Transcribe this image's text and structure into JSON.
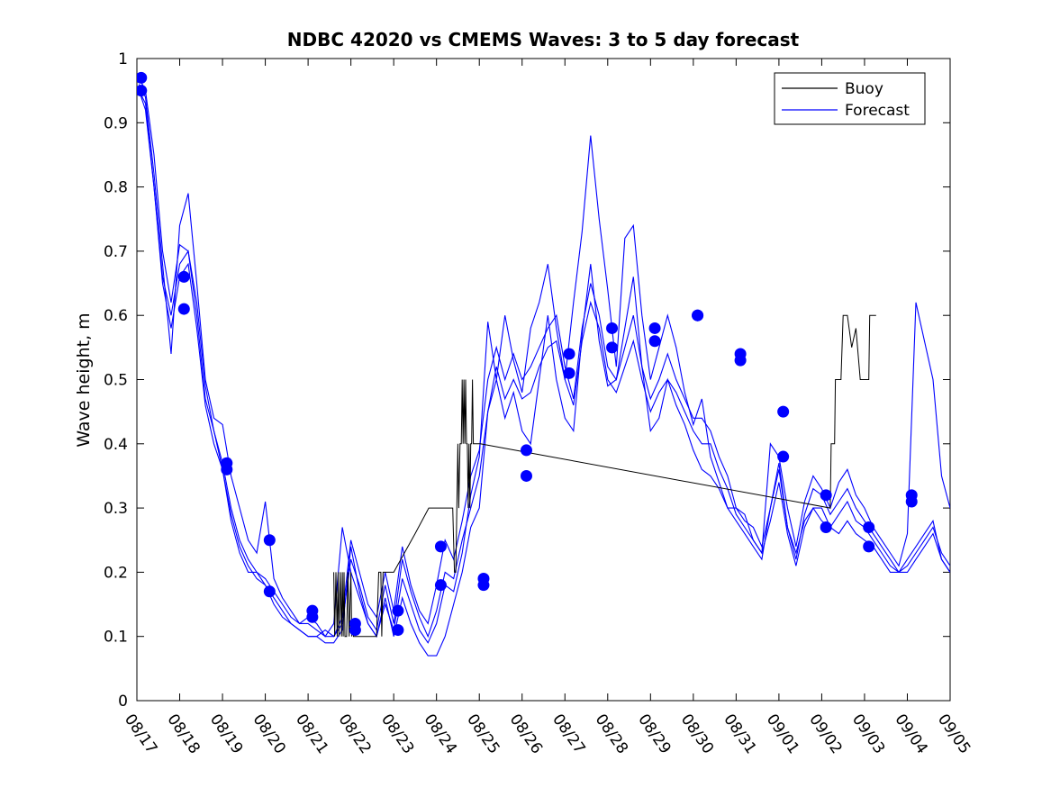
{
  "chart_data": {
    "type": "line",
    "title": "NDBC 42020 vs CMEMS Waves: 3 to 5 day forecast",
    "xlabel": "",
    "ylabel": "Wave height, m",
    "xlim": [
      0,
      19
    ],
    "ylim": [
      0,
      1
    ],
    "grid": false,
    "legend_position": "top-right",
    "x_tick_labels": [
      "08/17",
      "08/18",
      "08/19",
      "08/20",
      "08/21",
      "08/22",
      "08/23",
      "08/24",
      "08/25",
      "08/26",
      "08/27",
      "08/28",
      "08/29",
      "08/30",
      "08/31",
      "09/01",
      "09/02",
      "09/03",
      "09/04",
      "09/05"
    ],
    "y_ticks": [
      0,
      0.1,
      0.2,
      0.3,
      0.4,
      0.5,
      0.6,
      0.7,
      0.8,
      0.9,
      1
    ],
    "y_tick_labels": [
      "0",
      "0.1",
      "0.2",
      "0.3",
      "0.4",
      "0.5",
      "0.6",
      "0.7",
      "0.8",
      "0.9",
      "1"
    ],
    "legend": [
      "Buoy",
      "Forecast"
    ],
    "colors": {
      "buoy": "#000000",
      "forecast": "#0000ff"
    },
    "buoy": {
      "name": "Buoy",
      "x": [
        4.6,
        4.62,
        4.65,
        4.68,
        4.7,
        4.72,
        4.75,
        4.78,
        4.8,
        4.82,
        4.84,
        4.86,
        4.9,
        4.93,
        4.96,
        5.0,
        5.02,
        5.04,
        5.06,
        5.08,
        5.1,
        5.4,
        5.6,
        5.65,
        5.7,
        5.72,
        5.75,
        6.0,
        6.5,
        6.82,
        6.85,
        6.9,
        7.38,
        7.42,
        7.45,
        7.5,
        7.52,
        7.55,
        7.58,
        7.6,
        7.62,
        7.64,
        7.66,
        7.68,
        7.7,
        7.72,
        7.74,
        7.76,
        7.78,
        7.8,
        7.82,
        7.84,
        7.86,
        7.88,
        7.9,
        7.92,
        7.94,
        7.96,
        8.0,
        8.02,
        16.2,
        16.22,
        16.3,
        16.32,
        16.45,
        16.5,
        16.6,
        16.7,
        16.8,
        16.9,
        17.0,
        17.05,
        17.1,
        17.12,
        17.25,
        17.27
      ],
      "y": [
        0.2,
        0.1,
        0.2,
        0.1,
        0.2,
        0.1,
        0.2,
        0.1,
        0.2,
        0.1,
        0.2,
        0.1,
        0.1,
        0.2,
        0.1,
        0.2,
        0.1,
        0.12,
        0.1,
        0.1,
        0.1,
        0.1,
        0.1,
        0.2,
        0.2,
        0.1,
        0.2,
        0.2,
        0.26,
        0.3,
        0.3,
        0.3,
        0.3,
        0.2,
        0.2,
        0.4,
        0.3,
        0.4,
        0.4,
        0.5,
        0.4,
        0.5,
        0.4,
        0.5,
        0.4,
        0.4,
        0.3,
        0.4,
        0.3,
        0.4,
        0.4,
        0.5,
        0.4,
        0.4,
        0.4,
        0.4,
        0.4,
        0.4,
        0.4,
        0.4,
        0.3,
        0.4,
        0.4,
        0.5,
        0.5,
        0.6,
        0.6,
        0.55,
        0.58,
        0.5,
        0.5,
        0.5,
        0.5,
        0.6,
        0.6,
        0.6
      ]
    },
    "forecast_series": [
      {
        "name": "Forecast",
        "x": [
          0.05,
          0.2,
          0.4,
          0.6,
          0.8,
          1.0,
          1.2,
          1.4,
          1.6,
          1.8,
          2.0,
          2.2,
          2.4,
          2.6,
          2.8,
          3.0,
          3.2,
          3.4,
          3.6,
          3.8,
          4.0,
          4.2,
          4.4,
          4.6,
          4.8,
          5.0,
          5.2,
          5.4,
          5.6,
          5.8,
          6.0,
          6.2,
          6.4,
          6.6,
          6.8,
          7.0,
          7.2,
          7.4,
          7.6,
          7.8,
          8.0,
          8.2,
          8.4,
          8.6,
          8.8,
          9.0,
          9.2,
          9.4,
          9.6,
          9.8,
          10.0,
          10.2,
          10.4,
          10.6,
          10.8,
          11.0,
          11.2,
          11.4,
          11.6,
          11.8,
          12.0,
          12.2,
          12.4,
          12.6,
          12.8,
          13.0,
          13.2,
          13.4,
          13.6,
          13.8,
          14.0,
          14.2,
          14.4,
          14.6,
          14.8,
          15.0,
          15.2,
          15.4,
          15.6,
          15.8,
          16.0,
          16.2,
          16.4,
          16.6,
          16.8,
          17.0,
          17.2,
          17.4,
          17.6,
          17.8,
          18.0,
          18.2,
          18.4,
          18.6,
          18.8,
          19.0
        ],
        "y": [
          0.95,
          0.93,
          0.8,
          0.66,
          0.6,
          0.68,
          0.7,
          0.6,
          0.47,
          0.42,
          0.37,
          0.3,
          0.25,
          0.22,
          0.2,
          0.19,
          0.17,
          0.15,
          0.13,
          0.12,
          0.12,
          0.11,
          0.1,
          0.1,
          0.13,
          0.25,
          0.2,
          0.15,
          0.13,
          0.2,
          0.14,
          0.24,
          0.18,
          0.14,
          0.12,
          0.18,
          0.25,
          0.22,
          0.28,
          0.35,
          0.39,
          0.5,
          0.55,
          0.5,
          0.54,
          0.5,
          0.52,
          0.55,
          0.58,
          0.6,
          0.52,
          0.47,
          0.58,
          0.65,
          0.6,
          0.52,
          0.5,
          0.55,
          0.6,
          0.52,
          0.47,
          0.5,
          0.54,
          0.5,
          0.47,
          0.44,
          0.44,
          0.42,
          0.38,
          0.35,
          0.3,
          0.28,
          0.27,
          0.24,
          0.3,
          0.37,
          0.27,
          0.22,
          0.29,
          0.33,
          0.32,
          0.29,
          0.31,
          0.33,
          0.3,
          0.28,
          0.26,
          0.24,
          0.22,
          0.2,
          0.2,
          0.22,
          0.24,
          0.26,
          0.22,
          0.2
        ]
      },
      {
        "name": "Forecast",
        "x": [
          0.05,
          0.2,
          0.4,
          0.6,
          0.8,
          1.0,
          1.2,
          1.4,
          1.6,
          1.8,
          2.0,
          2.2,
          2.4,
          2.6,
          2.8,
          3.0,
          3.2,
          3.4,
          3.6,
          3.8,
          4.0,
          4.2,
          4.4,
          4.6,
          4.8,
          5.0,
          5.2,
          5.4,
          5.6,
          5.8,
          6.0,
          6.2,
          6.4,
          6.6,
          6.8,
          7.0,
          7.2,
          7.4,
          7.6,
          7.8,
          8.0,
          8.2,
          8.4,
          8.6,
          8.8,
          9.0,
          9.2,
          9.4,
          9.6,
          9.8,
          10.0,
          10.2,
          10.4,
          10.6,
          10.8,
          11.0,
          11.2,
          11.4,
          11.6,
          11.8,
          12.0,
          12.2,
          12.4,
          12.6,
          12.8,
          13.0,
          13.2,
          13.4,
          13.6,
          13.8,
          14.0,
          14.2,
          14.4,
          14.6,
          14.8,
          15.0,
          15.2,
          15.4,
          15.6,
          15.8,
          16.0,
          16.2,
          16.4,
          16.6,
          16.8,
          17.0,
          17.2,
          17.4,
          17.6,
          17.8,
          18.0,
          18.2,
          18.4,
          18.6,
          18.8,
          19.0
        ],
        "y": [
          0.97,
          0.95,
          0.85,
          0.7,
          0.62,
          0.71,
          0.7,
          0.62,
          0.49,
          0.42,
          0.36,
          0.29,
          0.24,
          0.21,
          0.19,
          0.18,
          0.16,
          0.14,
          0.12,
          0.11,
          0.1,
          0.1,
          0.11,
          0.1,
          0.12,
          0.22,
          0.18,
          0.13,
          0.11,
          0.18,
          0.12,
          0.22,
          0.17,
          0.13,
          0.1,
          0.14,
          0.2,
          0.19,
          0.25,
          0.3,
          0.35,
          0.45,
          0.52,
          0.47,
          0.5,
          0.47,
          0.48,
          0.52,
          0.55,
          0.56,
          0.5,
          0.46,
          0.56,
          0.62,
          0.58,
          0.5,
          0.48,
          0.52,
          0.56,
          0.5,
          0.45,
          0.48,
          0.5,
          0.48,
          0.45,
          0.42,
          0.4,
          0.4,
          0.36,
          0.33,
          0.29,
          0.27,
          0.25,
          0.23,
          0.28,
          0.34,
          0.26,
          0.21,
          0.27,
          0.3,
          0.3,
          0.27,
          0.29,
          0.31,
          0.28,
          0.27,
          0.25,
          0.23,
          0.21,
          0.2,
          0.21,
          0.23,
          0.25,
          0.27,
          0.23,
          0.21
        ]
      },
      {
        "name": "Forecast",
        "x": [
          0.05,
          0.2,
          0.4,
          0.6,
          0.8,
          1.0,
          1.2,
          1.4,
          1.6,
          1.8,
          2.0,
          2.2,
          2.4,
          2.6,
          2.8,
          3.0,
          3.2,
          3.4,
          3.6,
          3.8,
          4.0,
          4.2,
          4.4,
          4.6,
          4.8,
          5.0,
          5.2,
          5.4,
          5.6,
          5.8,
          6.0,
          6.2,
          6.4,
          6.6,
          6.8,
          7.0,
          7.2,
          7.4,
          7.6,
          7.8,
          8.0,
          8.2,
          8.4,
          8.6,
          8.8,
          9.0,
          9.2,
          9.4,
          9.6,
          9.8,
          10.0,
          10.2,
          10.4,
          10.6,
          10.8,
          11.0,
          11.2,
          11.4,
          11.6,
          11.8,
          12.0,
          12.2,
          12.4,
          12.6,
          12.8,
          13.0,
          13.2,
          13.4,
          13.6,
          13.8,
          14.0,
          14.2,
          14.4,
          14.6,
          14.8,
          15.0,
          15.2,
          15.4,
          15.6,
          15.8,
          16.0,
          16.2,
          16.4,
          16.6,
          16.8,
          17.0,
          17.2,
          17.4,
          17.6,
          17.8,
          18.0,
          18.2,
          18.4,
          18.6,
          18.8,
          19.0
        ],
        "y": [
          0.96,
          0.94,
          0.82,
          0.68,
          0.54,
          0.74,
          0.79,
          0.65,
          0.5,
          0.44,
          0.43,
          0.35,
          0.3,
          0.25,
          0.23,
          0.31,
          0.19,
          0.16,
          0.14,
          0.12,
          0.13,
          0.12,
          0.1,
          0.12,
          0.27,
          0.2,
          0.16,
          0.12,
          0.1,
          0.15,
          0.11,
          0.19,
          0.15,
          0.11,
          0.09,
          0.12,
          0.18,
          0.17,
          0.23,
          0.32,
          0.38,
          0.59,
          0.5,
          0.6,
          0.53,
          0.48,
          0.58,
          0.62,
          0.68,
          0.58,
          0.5,
          0.62,
          0.73,
          0.88,
          0.75,
          0.64,
          0.52,
          0.72,
          0.74,
          0.6,
          0.5,
          0.55,
          0.6,
          0.55,
          0.48,
          0.43,
          0.47,
          0.38,
          0.34,
          0.3,
          0.3,
          0.29,
          0.25,
          0.23,
          0.4,
          0.38,
          0.3,
          0.24,
          0.31,
          0.35,
          0.33,
          0.3,
          0.34,
          0.36,
          0.32,
          0.3,
          0.27,
          0.25,
          0.23,
          0.21,
          0.26,
          0.62,
          0.56,
          0.5,
          0.35,
          0.3
        ]
      },
      {
        "name": "Forecast",
        "x": [
          0.05,
          0.2,
          0.4,
          0.6,
          0.8,
          1.0,
          1.2,
          1.4,
          1.6,
          1.8,
          2.0,
          2.2,
          2.4,
          2.6,
          2.8,
          3.0,
          3.2,
          3.4,
          3.6,
          3.8,
          4.0,
          4.2,
          4.4,
          4.6,
          4.8,
          5.0,
          5.2,
          5.4,
          5.6,
          5.8,
          6.0,
          6.2,
          6.4,
          6.6,
          6.8,
          7.0,
          7.2,
          7.4,
          7.6,
          7.8,
          8.0,
          8.2,
          8.4,
          8.6,
          8.8,
          9.0,
          9.2,
          9.4,
          9.6,
          9.8,
          10.0,
          10.2,
          10.4,
          10.6,
          10.8,
          11.0,
          11.2,
          11.4,
          11.6,
          11.8,
          12.0,
          12.2,
          12.4,
          12.6,
          12.8,
          13.0,
          13.2,
          13.4,
          13.6,
          13.8,
          14.0,
          14.2,
          14.4,
          14.6,
          14.8,
          15.0,
          15.2,
          15.4,
          15.6,
          15.8,
          16.0,
          16.2,
          16.4,
          16.6,
          16.8,
          17.0,
          17.2,
          17.4,
          17.6,
          17.8,
          18.0,
          18.2,
          18.4,
          18.6,
          18.8,
          19.0
        ],
        "y": [
          0.95,
          0.92,
          0.8,
          0.65,
          0.58,
          0.66,
          0.68,
          0.58,
          0.46,
          0.4,
          0.36,
          0.28,
          0.23,
          0.2,
          0.2,
          0.18,
          0.15,
          0.13,
          0.12,
          0.11,
          0.1,
          0.1,
          0.09,
          0.09,
          0.11,
          0.24,
          0.17,
          0.12,
          0.1,
          0.16,
          0.1,
          0.16,
          0.12,
          0.09,
          0.07,
          0.07,
          0.1,
          0.15,
          0.2,
          0.27,
          0.3,
          0.45,
          0.5,
          0.44,
          0.48,
          0.42,
          0.4,
          0.5,
          0.6,
          0.5,
          0.44,
          0.42,
          0.57,
          0.68,
          0.56,
          0.49,
          0.5,
          0.58,
          0.66,
          0.52,
          0.42,
          0.44,
          0.5,
          0.46,
          0.43,
          0.39,
          0.36,
          0.35,
          0.33,
          0.3,
          0.28,
          0.26,
          0.24,
          0.22,
          0.3,
          0.36,
          0.27,
          0.23,
          0.28,
          0.3,
          0.28,
          0.27,
          0.26,
          0.28,
          0.26,
          0.25,
          0.24,
          0.22,
          0.2,
          0.2,
          0.22,
          0.24,
          0.26,
          0.28,
          0.22,
          0.2
        ]
      }
    ],
    "markers": {
      "name": "Forecast",
      "x": [
        0.1,
        0.1,
        1.1,
        1.1,
        2.1,
        2.1,
        3.1,
        3.1,
        4.1,
        4.1,
        5.1,
        5.1,
        6.1,
        6.1,
        7.1,
        7.1,
        8.1,
        8.1,
        9.1,
        9.1,
        10.1,
        10.1,
        11.1,
        11.1,
        12.1,
        12.1,
        13.1,
        13.1,
        14.1,
        14.1,
        15.1,
        15.1,
        16.1,
        16.1,
        17.1,
        17.1,
        18.1,
        18.1
      ],
      "y": [
        0.97,
        0.95,
        0.66,
        0.61,
        0.37,
        0.36,
        0.25,
        0.17,
        0.14,
        0.13,
        0.12,
        0.11,
        0.14,
        0.11,
        0.24,
        0.18,
        0.19,
        0.18,
        0.39,
        0.35,
        0.54,
        0.51,
        0.58,
        0.55,
        0.58,
        0.56,
        0.6,
        0.6,
        0.54,
        0.53,
        0.45,
        0.38,
        0.32,
        0.27,
        0.27,
        0.24,
        0.32,
        0.31
      ]
    }
  }
}
